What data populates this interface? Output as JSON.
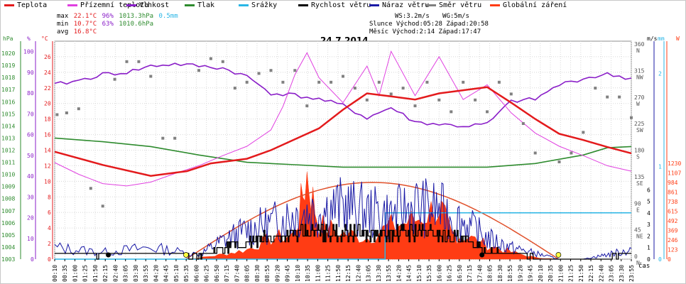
{
  "legend": [
    {
      "label": "Teplota",
      "color": "#e31a1c"
    },
    {
      "label": "Přízemní teplota",
      "color": "#e040e0"
    },
    {
      "label": "Vlhkost",
      "color": "#8a1ec8"
    },
    {
      "label": "Tlak",
      "color": "#2e8b2e"
    },
    {
      "label": "Srážky",
      "color": "#29b6e6"
    },
    {
      "label": "Rychlost větru",
      "color": "#000000"
    },
    {
      "label": "Náraz větru",
      "color": "#1a1aa6"
    },
    {
      "label": "Směr větru",
      "color": "#808080"
    },
    {
      "label": "Globální záření",
      "color": "#ff3c14"
    }
  ],
  "stats": {
    "max_label": "max",
    "max_temp": "22.1°C",
    "max_hum": "96%",
    "max_press": "1013.3hPa",
    "max_rain": "0.5mm",
    "min_label": "min",
    "min_temp": "10.7°C",
    "min_hum": "63%",
    "min_press": "1010.6hPa",
    "avg_label": "avg",
    "avg_temp": "16.8°C",
    "wind_line1": "WS:3.2m/s",
    "wind_line1b": "WG:5m/s",
    "sun_line": "Slunce Východ:05:28  Západ:20:58",
    "moon_line": "Měsíc  Východ:2:14   Západ:17:47"
  },
  "chart_data": {
    "type": "line",
    "title": "24.7.2014",
    "xlabel": "čas",
    "x_ticks": [
      "00:10",
      "00:35",
      "01:00",
      "01:25",
      "01:50",
      "02:15",
      "02:40",
      "03:05",
      "03:30",
      "03:55",
      "04:20",
      "04:45",
      "05:10",
      "05:35",
      "06:00",
      "06:25",
      "06:50",
      "07:15",
      "07:40",
      "08:05",
      "08:30",
      "08:55",
      "09:20",
      "09:45",
      "10:10",
      "10:35",
      "11:00",
      "11:25",
      "11:50",
      "12:15",
      "12:40",
      "13:05",
      "13:30",
      "13:55",
      "14:20",
      "14:45",
      "15:10",
      "15:35",
      "16:00",
      "16:25",
      "16:50",
      "17:15",
      "17:40",
      "18:05",
      "18:30",
      "18:55",
      "19:20",
      "19:45",
      "20:10",
      "20:35",
      "21:00",
      "21:25",
      "21:50",
      "22:15",
      "22:40",
      "23:05",
      "23:30",
      "23:55"
    ],
    "axes": {
      "pressure": {
        "unit": "hPa",
        "range": [
          1003,
          1021
        ],
        "ticks": [
          "1020",
          "1019",
          "1018",
          "1017",
          "1016",
          "1015",
          "1014",
          "1013",
          "1012",
          "1011",
          "1010",
          "1009",
          "1008",
          "1007",
          "1006",
          "1005",
          "1004",
          "1003"
        ]
      },
      "humidity": {
        "unit": "%",
        "range": [
          0,
          100
        ],
        "ticks": [
          "100",
          "90",
          "80",
          "70",
          "60",
          "50",
          "40",
          "30",
          "20",
          "10",
          "0"
        ]
      },
      "temperature": {
        "unit": "°C",
        "range": [
          0,
          28
        ],
        "ticks": [
          "26",
          "24",
          "22",
          "20",
          "18",
          "16",
          "14",
          "12",
          "10",
          "8",
          "6",
          "4",
          "2",
          "0"
        ]
      },
      "direction": {
        "unit": "",
        "ticks": [
          "360 N",
          "315 NW",
          "270 W",
          "225 SW",
          "180 S",
          "135 SE",
          "90 E",
          "45 NE",
          "0 N"
        ]
      },
      "wind": {
        "unit": "m/s",
        "ticks": [
          "6",
          "5",
          "4",
          "3",
          "2",
          "1",
          "0"
        ]
      },
      "rain": {
        "unit": "mm",
        "ticks": [
          "2",
          "1",
          "0"
        ]
      },
      "radiation": {
        "unit": "W",
        "ticks": [
          "1230",
          "1107",
          "984",
          "861",
          "738",
          "615",
          "492",
          "369",
          "246",
          "123",
          "0"
        ]
      }
    },
    "series": [
      {
        "name": "Teplota",
        "unit": "°C",
        "x": [
          0,
          2,
          4,
          5.5,
          6.5,
          8,
          9,
          10,
          11,
          12,
          13,
          14,
          15,
          16,
          17,
          18,
          19,
          20,
          21,
          22,
          23,
          24
        ],
        "values": [
          13.8,
          12.1,
          10.7,
          11.3,
          12.3,
          12.9,
          14.0,
          15.4,
          16.8,
          19.2,
          21.3,
          20.9,
          20.5,
          21.3,
          21.7,
          22.1,
          20.1,
          18.0,
          16.1,
          15.3,
          14.4,
          13.6
        ]
      },
      {
        "name": "Přízemní teplota",
        "unit": "°C",
        "x": [
          0,
          1,
          2,
          3,
          4,
          5,
          6,
          7,
          8,
          9,
          9.5,
          10,
          10.5,
          11,
          12,
          13,
          13.5,
          14,
          15,
          16,
          17,
          18,
          19,
          20,
          21,
          22,
          23,
          24
        ],
        "values": [
          12.4,
          10.9,
          9.7,
          9.4,
          9.9,
          11.0,
          12.0,
          13.3,
          14.5,
          16.6,
          19.6,
          23.7,
          26.5,
          23.3,
          20.1,
          24.8,
          21.0,
          26.7,
          21.0,
          26.0,
          20.5,
          22.4,
          18.8,
          16.2,
          14.5,
          13.3,
          12.0,
          11.3
        ]
      },
      {
        "name": "Vlhkost",
        "unit": "%",
        "x": [
          0,
          1,
          2,
          3,
          4,
          5,
          6,
          7,
          8,
          9,
          10,
          11,
          12,
          13,
          14,
          15,
          16,
          17,
          18,
          19,
          20,
          21,
          22,
          23,
          24
        ],
        "values": [
          84,
          86,
          89,
          90,
          93,
          94,
          93,
          92,
          88,
          80,
          79,
          77,
          74,
          68,
          73,
          66,
          65,
          64,
          65,
          76,
          77,
          84,
          87,
          89,
          87
        ]
      },
      {
        "name": "Tlak",
        "unit": "hPa",
        "x": [
          0,
          2,
          4,
          6,
          8,
          10,
          12,
          14,
          16,
          18,
          20,
          22,
          23,
          24
        ],
        "values": [
          1013.0,
          1012.7,
          1012.3,
          1011.6,
          1011.0,
          1010.8,
          1010.6,
          1010.6,
          1010.6,
          1010.6,
          1010.9,
          1011.6,
          1012.2,
          1012.3
        ]
      },
      {
        "name": "Srážky",
        "unit": "mm",
        "x": [
          0,
          13.75,
          13.76,
          24
        ],
        "values": [
          0,
          0,
          0.5,
          0.5
        ]
      }
    ],
    "wind_speed": {
      "name": "Rychlost větru",
      "unit": "m/s",
      "x": [
        0,
        2,
        4,
        6,
        7,
        8,
        9,
        10,
        11,
        12,
        13,
        14,
        15,
        16,
        17,
        18,
        19,
        20,
        21,
        22,
        23,
        24
      ],
      "values": [
        0.5,
        0.3,
        0.6,
        0.2,
        0.9,
        1.4,
        1.9,
        2.1,
        2.4,
        2.3,
        2.2,
        2.1,
        2.4,
        2.2,
        1.7,
        0.7,
        0.5,
        0.2,
        0.0,
        0.0,
        0.2,
        0.4
      ]
    },
    "wind_gust": {
      "name": "Náraz větru",
      "unit": "m/s",
      "x": [
        0,
        2,
        4,
        6,
        7,
        8,
        9,
        10,
        11,
        12,
        13,
        14,
        15,
        16,
        17,
        18,
        19,
        20,
        21,
        22,
        23,
        24
      ],
      "values": [
        1.0,
        0.6,
        1.0,
        0.4,
        1.6,
        2.5,
        3.1,
        3.9,
        4.2,
        4.6,
        4.1,
        3.8,
        4.6,
        4.3,
        3.2,
        1.8,
        1.0,
        0.5,
        0.0,
        0.0,
        0.4,
        0.8
      ]
    },
    "radiation": {
      "name": "Globální záření",
      "unit": "W",
      "x": [
        5.5,
        6,
        7,
        8,
        9,
        10,
        10.5,
        11,
        12,
        13,
        14,
        15,
        16,
        16.5,
        17,
        18,
        19,
        20,
        20.9
      ],
      "values": [
        0,
        15,
        60,
        120,
        260,
        320,
        1080,
        440,
        330,
        280,
        420,
        500,
        680,
        320,
        300,
        180,
        90,
        20,
        0
      ]
    },
    "sun_model": {
      "name": "Globální záření (teoretické)",
      "x": [
        5.47,
        13.2,
        20.97
      ],
      "peak": 984
    },
    "wind_direction": {
      "name": "Směr větru",
      "unit": "°",
      "x": [
        0.1,
        0.5,
        1,
        1.5,
        2,
        2.5,
        3,
        3.5,
        4,
        4.5,
        5,
        6,
        6.5,
        7,
        7.5,
        8,
        8.5,
        9,
        9.5,
        10,
        10.5,
        11,
        11.5,
        12,
        12.5,
        13,
        13.5,
        14,
        14.5,
        15,
        15.5,
        16,
        16.5,
        17,
        17.5,
        18,
        18.5,
        19,
        19.5,
        20,
        21,
        21.5,
        22,
        22.5,
        23,
        23.5,
        24
      ],
      "values": [
        245,
        248,
        255,
        120,
        90,
        305,
        335,
        335,
        310,
        205,
        205,
        320,
        340,
        335,
        290,
        300,
        315,
        320,
        300,
        320,
        260,
        300,
        300,
        310,
        290,
        270,
        300,
        280,
        290,
        260,
        300,
        270,
        250,
        300,
        270,
        250,
        300,
        280,
        230,
        180,
        165,
        180,
        215,
        290,
        275,
        275,
        240
      ]
    },
    "events": {
      "sunrise": "05:28",
      "sunset": "20:58",
      "moonrise": "2:14",
      "moonset": "17:47"
    }
  }
}
